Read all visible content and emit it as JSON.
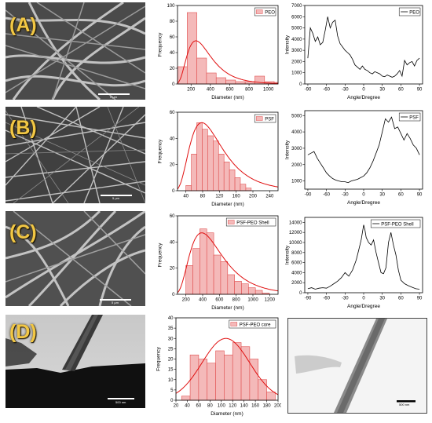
{
  "panels": [
    {
      "label": "(A)",
      "scale": "5 μm"
    },
    {
      "label": "(B)",
      "scale": "5 μm"
    },
    {
      "label": "(C)",
      "scale": "5 μm"
    },
    {
      "label": "(D)",
      "scale": "500 nm"
    }
  ],
  "tem_right_scale": "500 nm",
  "colors": {
    "hist_fill": "#f4b9b9",
    "hist_edge": "#e05050",
    "fit": "#e01010",
    "line": "#000000"
  },
  "chart_data": [
    {
      "type": "bar",
      "legend": "PEO",
      "xlabel": "Diameter (nm)",
      "ylabel": "Frequency",
      "xlim": [
        60,
        1100
      ],
      "ylim": [
        0,
        100
      ],
      "xticks": [
        200,
        400,
        600,
        800,
        1000
      ],
      "yticks": [
        0,
        20,
        40,
        60,
        80,
        100
      ],
      "bin_edges": [
        60,
        160,
        260,
        360,
        460,
        560,
        660,
        760,
        860,
        960,
        1060,
        1100
      ],
      "values": [
        22,
        91,
        33,
        14,
        8,
        5,
        3,
        3,
        10,
        3,
        2
      ],
      "fit": {
        "kind": "lognormal",
        "peak_x": 250,
        "peak_y": 55
      }
    },
    {
      "type": "bar",
      "legend": "PSF",
      "xlabel": "Diameter (nm)",
      "ylabel": "Frequency",
      "xlim": [
        20,
        260
      ],
      "ylim": [
        0,
        60
      ],
      "xticks": [
        40,
        80,
        120,
        160,
        200,
        240
      ],
      "yticks": [
        0,
        20,
        40,
        60
      ],
      "bin_edges": [
        40,
        53,
        66,
        79,
        92,
        105,
        118,
        131,
        144,
        157,
        170,
        183,
        196
      ],
      "values": [
        4,
        28,
        52,
        47,
        42,
        38,
        28,
        22,
        16,
        10,
        5,
        2
      ],
      "fit": {
        "kind": "lognormal",
        "peak_x": 78,
        "peak_y": 52
      }
    },
    {
      "type": "bar",
      "legend": "PSF-PEO Shell",
      "xlabel": "Diameter (nm)",
      "ylabel": "Frequency",
      "xlim": [
        100,
        1300
      ],
      "ylim": [
        0,
        60
      ],
      "xticks": [
        200,
        400,
        600,
        800,
        1000,
        1200
      ],
      "yticks": [
        0,
        20,
        40,
        60
      ],
      "bin_edges": [
        200,
        283,
        366,
        449,
        532,
        615,
        698,
        781,
        864,
        947,
        1030,
        1113,
        1196
      ],
      "values": [
        22,
        35,
        50,
        47,
        30,
        25,
        15,
        10,
        8,
        5,
        3,
        1
      ],
      "fit": {
        "kind": "lognormal",
        "peak_x": 390,
        "peak_y": 47
      }
    },
    {
      "type": "bar",
      "legend": "PSF-PEO core",
      "xlabel": "Diameter (nm)",
      "ylabel": "Frequency",
      "xlim": [
        20,
        200
      ],
      "ylim": [
        0,
        40
      ],
      "xticks": [
        20,
        40,
        60,
        80,
        100,
        120,
        140,
        160,
        180,
        200
      ],
      "yticks": [
        0,
        5,
        10,
        15,
        20,
        25,
        30,
        35,
        40
      ],
      "bin_edges": [
        30,
        45,
        60,
        75,
        90,
        105,
        120,
        135,
        150,
        165,
        180,
        195
      ],
      "values": [
        2,
        22,
        20,
        18,
        24,
        22,
        28,
        26,
        20,
        10,
        4
      ],
      "fit": {
        "kind": "gaussian",
        "peak_x": 108,
        "peak_y": 30,
        "sigma": 42
      }
    },
    {
      "type": "line",
      "legend": "PEO",
      "xlabel": "Angle/Dregree",
      "ylabel": "Intensity",
      "xlim": [
        -95,
        95
      ],
      "ylim": [
        0,
        7000
      ],
      "xticks": [
        -90,
        -60,
        -30,
        0,
        30,
        60,
        90
      ],
      "yticks": [
        0,
        1000,
        2000,
        3000,
        4000,
        5000,
        6000,
        7000
      ],
      "x": [
        -90,
        -86,
        -82,
        -78,
        -74,
        -70,
        -66,
        -62,
        -58,
        -54,
        -50,
        -46,
        -42,
        -38,
        -34,
        -30,
        -26,
        -22,
        -18,
        -14,
        -10,
        -6,
        -2,
        2,
        6,
        10,
        14,
        18,
        22,
        26,
        30,
        34,
        38,
        42,
        46,
        50,
        54,
        58,
        62,
        66,
        70,
        74,
        78,
        82,
        86,
        90
      ],
      "y": [
        2300,
        5000,
        4500,
        3800,
        4200,
        3500,
        3700,
        4800,
        6000,
        5000,
        5500,
        5700,
        4300,
        3600,
        3300,
        3000,
        2800,
        2600,
        2200,
        1700,
        1500,
        1300,
        1600,
        1300,
        1200,
        1000,
        900,
        1100,
        1000,
        900,
        700,
        650,
        800,
        700,
        600,
        700,
        900,
        1200,
        700,
        2100,
        1700,
        1900,
        2000,
        1600,
        2100,
        2300
      ]
    },
    {
      "type": "line",
      "legend": "PSF",
      "xlabel": "Angle/Dregree",
      "ylabel": "Intensity",
      "xlim": [
        -95,
        95
      ],
      "ylim": [
        500,
        5300
      ],
      "xticks": [
        -90,
        -60,
        -30,
        0,
        30,
        60,
        90
      ],
      "yticks": [
        1000,
        2000,
        3000,
        4000,
        5000
      ],
      "x": [
        -90,
        -85,
        -80,
        -75,
        -70,
        -65,
        -60,
        -55,
        -50,
        -45,
        -40,
        -35,
        -30,
        -25,
        -20,
        -15,
        -10,
        -5,
        0,
        5,
        10,
        15,
        20,
        25,
        30,
        35,
        40,
        45,
        50,
        55,
        60,
        65,
        70,
        75,
        80,
        85,
        90
      ],
      "y": [
        2600,
        2700,
        2800,
        2400,
        2100,
        1800,
        1500,
        1300,
        1150,
        1050,
        1000,
        950,
        950,
        900,
        1000,
        1050,
        1100,
        1200,
        1300,
        1500,
        1800,
        2200,
        2700,
        3200,
        4000,
        4800,
        4600,
        4900,
        4200,
        4300,
        3900,
        3500,
        3900,
        3600,
        3200,
        3000,
        2600
      ]
    },
    {
      "type": "line",
      "legend": "PSF-PEO Shell",
      "xlabel": "Angle/Dregree",
      "ylabel": "Intensity",
      "xlim": [
        -95,
        95
      ],
      "ylim": [
        0,
        15000
      ],
      "xticks": [
        -90,
        -60,
        -30,
        0,
        30,
        60,
        90
      ],
      "yticks": [
        0,
        2000,
        4000,
        6000,
        8000,
        10000,
        12000,
        14000
      ],
      "x": [
        -90,
        -84,
        -78,
        -72,
        -66,
        -60,
        -54,
        -48,
        -42,
        -36,
        -30,
        -24,
        -18,
        -12,
        -8,
        -4,
        0,
        2,
        4,
        8,
        12,
        16,
        20,
        24,
        28,
        32,
        36,
        40,
        44,
        48,
        52,
        56,
        60,
        66,
        72,
        78,
        84,
        90
      ],
      "y": [
        800,
        1000,
        700,
        900,
        1000,
        900,
        1300,
        1800,
        2300,
        3000,
        4000,
        3300,
        4500,
        6500,
        8500,
        10500,
        13500,
        12500,
        11000,
        10000,
        9500,
        10500,
        8000,
        6000,
        4000,
        3800,
        5000,
        10000,
        12000,
        9500,
        7500,
        4500,
        2500,
        1800,
        1400,
        1100,
        800,
        700
      ]
    }
  ]
}
